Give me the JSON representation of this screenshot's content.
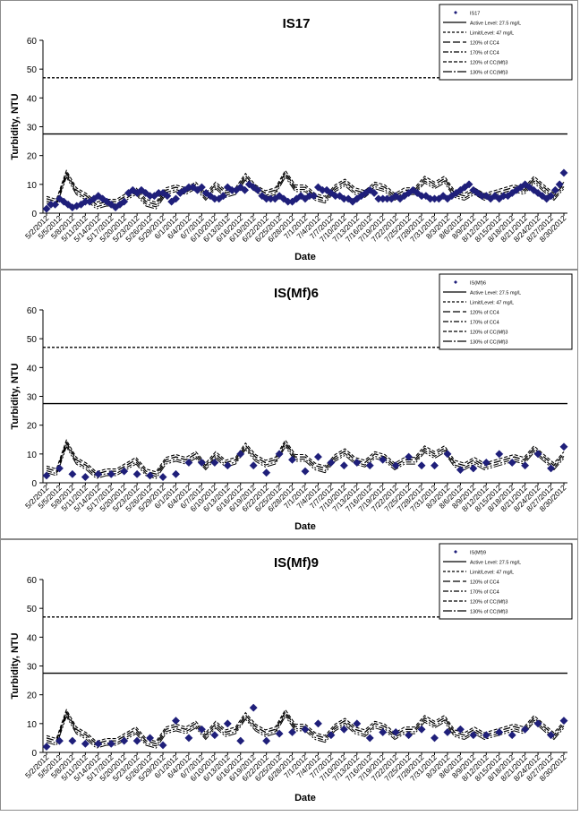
{
  "legend_labels": [
    "Active Level: 27.5 mg/L",
    "Limit/Level: 47 mg/L",
    "120% of CC4",
    "170% of CC4",
    "120% of CC(Mf)3",
    "130% of CC(Mf)3"
  ],
  "colors": {
    "marker": "#1f1f7a",
    "line": "#000000",
    "frame": "#8c8c8c"
  },
  "chart_data": [
    {
      "type": "line",
      "title": "IS17",
      "xlabel": "Date",
      "ylabel": "Turbidity, NTU",
      "ylim": [
        0,
        60
      ],
      "yticks": [
        "0",
        "10",
        "20",
        "30",
        "40",
        "50",
        "60"
      ],
      "x_tick_labels": [
        "5/2/2012",
        "5/5/2012",
        "5/8/2012",
        "5/11/2012",
        "5/14/2012",
        "5/17/2012",
        "5/20/2012",
        "5/23/2012",
        "5/26/2012",
        "5/29/2012",
        "6/1/2012",
        "6/4/2012",
        "6/7/2012",
        "6/10/2012",
        "6/13/2012",
        "6/16/2012",
        "6/19/2012",
        "6/22/2012",
        "6/25/2012",
        "6/28/2012",
        "7/1/2012",
        "7/4/2012",
        "7/7/2012",
        "7/10/2012",
        "7/13/2012",
        "7/16/2012",
        "7/19/2012",
        "7/22/2012",
        "7/25/2012",
        "7/28/2012",
        "7/31/2012",
        "8/3/2012",
        "8/6/2012",
        "8/9/2012",
        "8/12/2012",
        "8/15/2012",
        "8/18/2012",
        "8/21/2012",
        "8/24/2012",
        "8/27/2012",
        "8/30/2012"
      ],
      "legend_location": "top-right",
      "legend_entries": [
        "IS17",
        "Active Level: 27.5 mg/L",
        "Limit/Level: 47 mg/L",
        "120% of CC4",
        "170% of CC4",
        "120% of CC(Mf)3",
        "130% of CC(Mf)3"
      ],
      "horizontal_lines": [
        {
          "name": "Active Level: 27.5 mg/L",
          "y": 27.5
        },
        {
          "name": "Limit/Level: 47 mg/L",
          "y": 47
        }
      ],
      "baseline": [
        5,
        4,
        14,
        8,
        6,
        3,
        4,
        4,
        6,
        8,
        4,
        3,
        8,
        9,
        8,
        10,
        6,
        10,
        7,
        8,
        13,
        9,
        7,
        8,
        14,
        9,
        9,
        6,
        5,
        9,
        11,
        8,
        7,
        10,
        9,
        6,
        8,
        8,
        12,
        10,
        12,
        7,
        6,
        8,
        6,
        7,
        8,
        9,
        8,
        12,
        9,
        6,
        10
      ],
      "baseline_x_index_start": 0,
      "baseline_x_index_step": 0.7692,
      "series": [
        {
          "name": "IS17",
          "x_index": [
            0,
            1,
            2,
            3,
            4,
            5,
            6,
            7,
            8,
            9,
            10,
            11,
            12,
            13,
            14,
            15,
            16,
            17,
            18,
            19,
            20,
            21,
            22,
            23,
            24,
            25,
            26,
            27,
            28,
            29,
            30,
            31,
            32,
            33,
            34,
            35,
            36,
            37,
            38,
            39,
            40,
            41,
            42,
            43,
            44,
            45,
            46,
            47,
            48,
            49,
            50,
            51,
            52,
            53,
            54,
            55,
            56,
            57,
            58,
            59,
            60,
            61,
            62,
            63,
            64,
            65,
            66,
            67,
            68,
            69,
            70,
            71,
            72,
            73,
            74,
            75,
            76,
            77,
            78,
            79,
            80,
            81,
            82,
            83,
            84,
            85,
            86,
            87,
            88,
            89,
            90,
            91,
            92,
            93,
            94,
            95,
            96,
            97,
            98,
            99,
            100,
            101,
            102,
            103,
            104,
            105,
            106,
            107,
            108,
            109,
            110,
            111,
            112,
            113,
            114,
            115,
            116,
            117,
            118,
            119,
            120
          ],
          "values": [
            1.5,
            3,
            3,
            5,
            4,
            3,
            2,
            2.5,
            3,
            4,
            4,
            5,
            6,
            5,
            4,
            3,
            2,
            3,
            4,
            7,
            8,
            7,
            8,
            7,
            6,
            6,
            7,
            7,
            6,
            4,
            5,
            7,
            8,
            9,
            9,
            8,
            9,
            7,
            6,
            5,
            5,
            6,
            9,
            8,
            8,
            9,
            8,
            10,
            9,
            8,
            6,
            5,
            5,
            5,
            6,
            5,
            4,
            4,
            5,
            6,
            5,
            6,
            6,
            9,
            8,
            8,
            7,
            6,
            6,
            5,
            5,
            4,
            5,
            6,
            7,
            8,
            7,
            5,
            5,
            5,
            5,
            6,
            5,
            6,
            7,
            8,
            7,
            6,
            6,
            5,
            5,
            5,
            6,
            5,
            6,
            7,
            8,
            9,
            10,
            8,
            7,
            6,
            6,
            5,
            6,
            5,
            6,
            6,
            7,
            8,
            9,
            10,
            9,
            8,
            7,
            6,
            5,
            6,
            8,
            10,
            14
          ]
        }
      ]
    },
    {
      "type": "line",
      "title": "IS(Mf)6",
      "xlabel": "Date",
      "ylabel": "Turbidity, NTU",
      "ylim": [
        0,
        60
      ],
      "yticks": [
        "0",
        "10",
        "20",
        "30",
        "40",
        "50",
        "60"
      ],
      "x_tick_labels": [
        "5/2/2012",
        "5/5/2012",
        "5/8/2012",
        "5/11/2012",
        "5/14/2012",
        "5/17/2012",
        "5/20/2012",
        "5/23/2012",
        "5/26/2012",
        "5/29/2012",
        "6/1/2012",
        "6/4/2012",
        "6/7/2012",
        "6/10/2012",
        "6/13/2012",
        "6/16/2012",
        "6/19/2012",
        "6/22/2012",
        "6/25/2012",
        "6/28/2012",
        "7/1/2012",
        "7/4/2012",
        "7/7/2012",
        "7/10/2012",
        "7/13/2012",
        "7/16/2012",
        "7/19/2012",
        "7/22/2012",
        "7/25/2012",
        "7/28/2012",
        "7/31/2012",
        "8/3/2012",
        "8/6/2012",
        "8/9/2012",
        "8/12/2012",
        "8/15/2012",
        "8/18/2012",
        "8/21/2012",
        "8/24/2012",
        "8/27/2012",
        "8/30/2012"
      ],
      "legend_location": "top-right",
      "legend_entries": [
        "IS(Mf)6",
        "Active Level: 27.5 mg/L",
        "Limit/Level: 47 mg/L",
        "120% of CC4",
        "170% of CC4",
        "120% of CC(Mf)3",
        "130% of CC(Mf)3"
      ],
      "horizontal_lines": [
        {
          "name": "Active Level: 27.5 mg/L",
          "y": 27.5
        },
        {
          "name": "Limit/Level: 47 mg/L",
          "y": 47
        }
      ],
      "baseline": [
        5,
        4,
        14,
        8,
        6,
        3,
        4,
        4,
        6,
        8,
        4,
        3,
        8,
        9,
        8,
        10,
        6,
        10,
        7,
        8,
        13,
        9,
        7,
        8,
        14,
        9,
        9,
        6,
        5,
        9,
        11,
        8,
        7,
        10,
        9,
        6,
        8,
        8,
        12,
        10,
        12,
        7,
        6,
        8,
        6,
        7,
        8,
        9,
        8,
        12,
        9,
        6,
        10
      ],
      "baseline_x_index_start": 0,
      "baseline_x_index_step": 0.7692,
      "series": [
        {
          "name": "IS(Mf)6",
          "x_index": [
            0,
            1,
            2,
            3,
            4,
            5,
            6,
            7,
            8,
            9,
            10,
            11,
            12,
            13,
            14,
            15,
            16,
            17,
            18,
            19,
            20,
            21,
            22,
            23,
            24,
            25,
            26,
            27,
            28,
            29,
            30,
            31,
            32,
            33,
            34,
            35,
            36,
            37,
            38,
            39,
            40
          ],
          "values": [
            2.5,
            5,
            3,
            2,
            3,
            3,
            4,
            3,
            2.5,
            2,
            3,
            7,
            7,
            7,
            6,
            10,
            6,
            3.5,
            10,
            8,
            4,
            9,
            7,
            6,
            7,
            6,
            8,
            6,
            9,
            6,
            6,
            10,
            4.5,
            5,
            7,
            10,
            7,
            6,
            10,
            5,
            12.5
          ]
        }
      ]
    },
    {
      "type": "line",
      "title": "IS(Mf)9",
      "xlabel": "Date",
      "ylabel": "Turbidity, NTU",
      "ylim": [
        0,
        60
      ],
      "yticks": [
        "0",
        "10",
        "20",
        "30",
        "40",
        "50",
        "60"
      ],
      "x_tick_labels": [
        "5/2/2012",
        "5/5/2012",
        "5/8/2012",
        "5/11/2012",
        "5/14/2012",
        "5/17/2012",
        "5/20/2012",
        "5/23/2012",
        "5/26/2012",
        "5/29/2012",
        "6/1/2012",
        "6/4/2012",
        "6/7/2012",
        "6/10/2012",
        "6/13/2012",
        "6/16/2012",
        "6/19/2012",
        "6/22/2012",
        "6/25/2012",
        "6/28/2012",
        "7/1/2012",
        "7/4/2012",
        "7/7/2012",
        "7/10/2012",
        "7/13/2012",
        "7/16/2012",
        "7/19/2012",
        "7/22/2012",
        "7/25/2012",
        "7/28/2012",
        "7/31/2012",
        "8/3/2012",
        "8/6/2012",
        "8/9/2012",
        "8/12/2012",
        "8/15/2012",
        "8/18/2012",
        "8/21/2012",
        "8/24/2012",
        "8/27/2012",
        "8/30/2012"
      ],
      "legend_location": "top-right",
      "legend_entries": [
        "IS(Mf)9",
        "Active Level: 27.5 mg/L",
        "Limit/Level: 47 mg/L",
        "120% of CC4",
        "170% of CC4",
        "120% of CC(Mf)3",
        "130% of CC(Mf)3"
      ],
      "horizontal_lines": [
        {
          "name": "Active Level: 27.5 mg/L",
          "y": 27.5
        },
        {
          "name": "Limit/Level: 47 mg/L",
          "y": 47
        }
      ],
      "baseline": [
        5,
        4,
        14,
        8,
        6,
        3,
        4,
        4,
        6,
        8,
        4,
        3,
        8,
        9,
        8,
        10,
        6,
        10,
        7,
        8,
        13,
        9,
        7,
        8,
        14,
        9,
        9,
        6,
        5,
        9,
        11,
        8,
        7,
        10,
        9,
        6,
        8,
        8,
        12,
        10,
        12,
        7,
        6,
        8,
        6,
        7,
        8,
        9,
        8,
        12,
        9,
        6,
        10
      ],
      "baseline_x_index_start": 0,
      "baseline_x_index_step": 0.7692,
      "series": [
        {
          "name": "IS(Mf)9",
          "x_index": [
            0,
            1,
            2,
            3,
            4,
            5,
            6,
            7,
            8,
            9,
            10,
            11,
            12,
            13,
            14,
            15,
            16,
            17,
            18,
            19,
            20,
            21,
            22,
            23,
            24,
            25,
            26,
            27,
            28,
            29,
            30,
            31,
            32,
            33,
            34,
            35,
            36,
            37,
            38,
            39,
            40
          ],
          "values": [
            2,
            4,
            4,
            3,
            3,
            3,
            4,
            4,
            5,
            2.5,
            11,
            5,
            8,
            6,
            10,
            4,
            15.5,
            4,
            6.5,
            7,
            8,
            10,
            6,
            8,
            10,
            5,
            7,
            7,
            6,
            8,
            5,
            7,
            8,
            6,
            6,
            7,
            6,
            8,
            10,
            6,
            11
          ]
        }
      ]
    }
  ]
}
